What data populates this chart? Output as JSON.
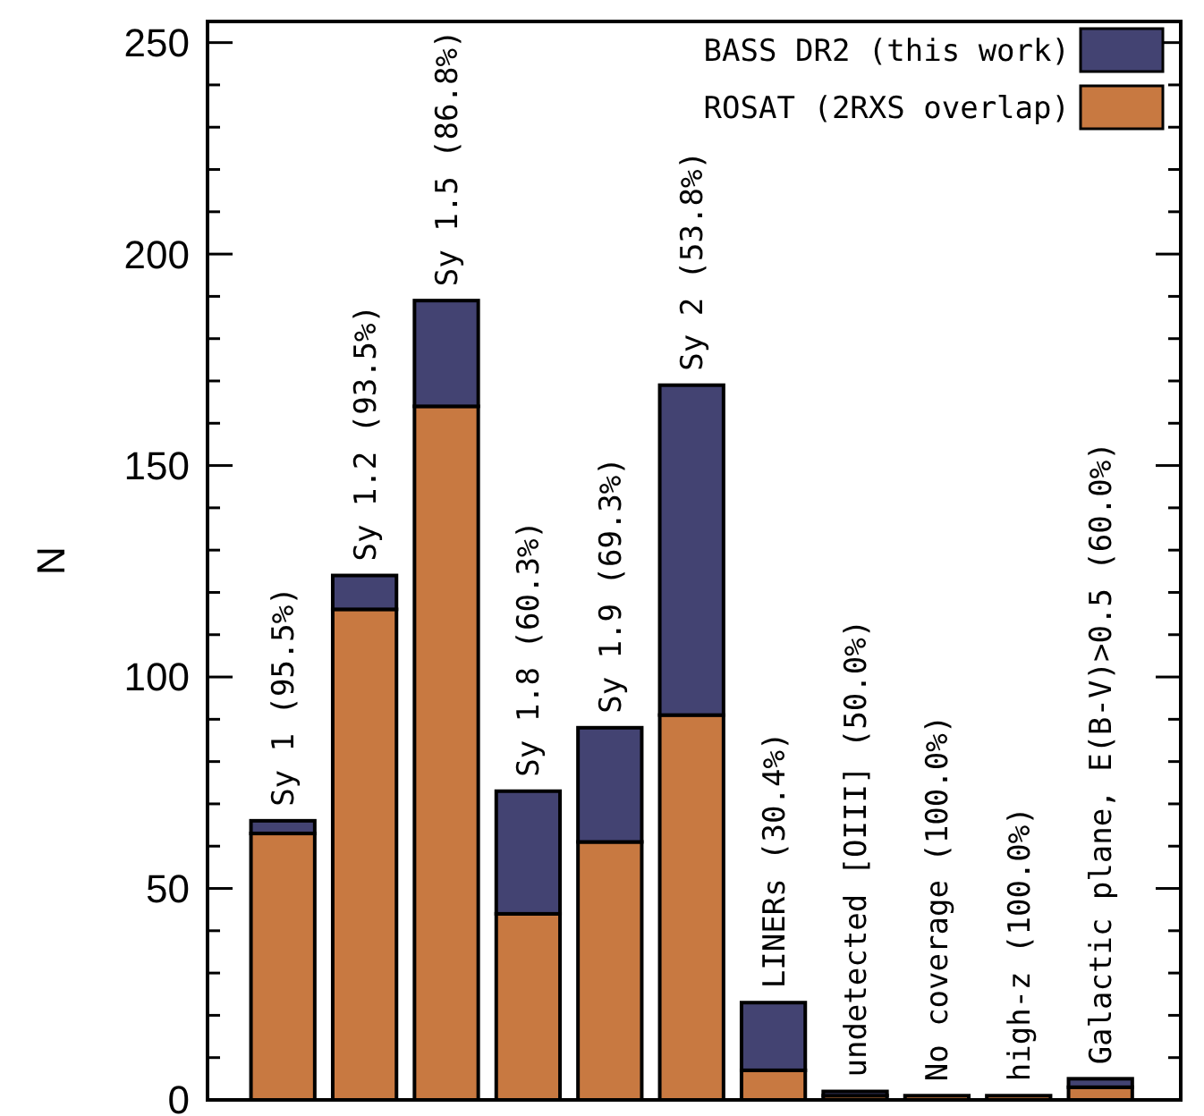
{
  "chart_data": {
    "type": "bar",
    "stacked": true,
    "ylabel": "N",
    "categories": [
      "Sy 1 (95.5%)",
      "Sy 1.2 (93.5%)",
      "Sy 1.5 (86.8%)",
      "Sy 1.8 (60.3%)",
      "Sy 1.9 (69.3%)",
      "Sy 2 (53.8%)",
      "LINERs (30.4%)",
      "undetected [OIII] (50.0%)",
      "No coverage (100.0%)",
      "high-z (100.0%)",
      "Galactic plane, E(B-V)>0.5 (60.0%)"
    ],
    "series": [
      {
        "name": "ROSAT (2RXS overlap)",
        "color": "#c87941",
        "values": [
          63,
          116,
          164,
          44,
          61,
          91,
          7,
          1,
          1,
          1,
          3
        ]
      },
      {
        "name": "BASS DR2 (this work)",
        "color": "#434372",
        "values": [
          3,
          8,
          25,
          29,
          27,
          78,
          16,
          1,
          0,
          0,
          2
        ]
      }
    ],
    "ylim": [
      0,
      255
    ],
    "yticks": [
      0,
      {
        "value": 10,
        "label": null
      },
      {
        "value": 20,
        "label": null
      },
      {
        "value": 30,
        "label": null
      },
      {
        "value": 40,
        "label": null
      },
      50,
      {
        "value": 60,
        "label": null
      },
      {
        "value": 70,
        "label": null
      },
      {
        "value": 80,
        "label": null
      },
      {
        "value": 90,
        "label": null
      },
      100,
      {
        "value": 110,
        "label": null
      },
      {
        "value": 120,
        "label": null
      },
      {
        "value": 130,
        "label": null
      },
      {
        "value": 140,
        "label": null
      },
      150,
      {
        "value": 160,
        "label": null
      },
      {
        "value": 170,
        "label": null
      },
      {
        "value": 180,
        "label": null
      },
      {
        "value": 190,
        "label": null
      },
      200,
      {
        "value": 210,
        "label": null
      },
      {
        "value": 220,
        "label": null
      },
      {
        "value": 230,
        "label": null
      },
      {
        "value": 240,
        "label": null
      },
      250
    ],
    "legend": "top right",
    "grid": false
  }
}
